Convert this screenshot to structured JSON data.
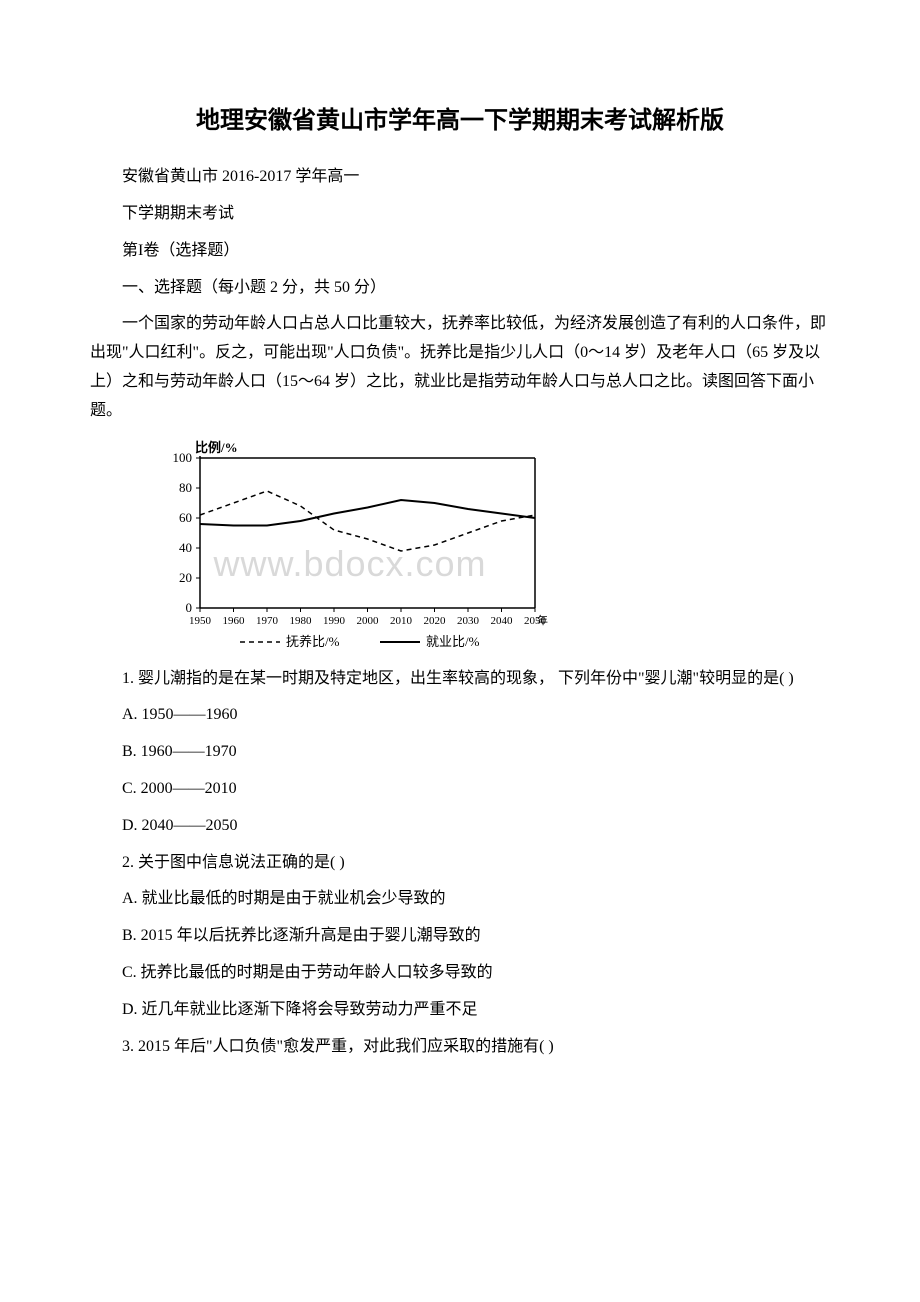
{
  "title": "地理安徽省黄山市学年高一下学期期末考试解析版",
  "intro": {
    "line1": "安徽省黄山市 2016-2017 学年高一",
    "line2": "下学期期末考试",
    "line3": "第I卷（选择题）",
    "line4": "一、选择题（每小题 2 分，共 50 分）"
  },
  "passage": "一个国家的劳动年龄人口占总人口比重较大，抚养率比较低，为经济发展创造了有利的人口条件，即出现\"人口红利\"。反之，可能出现\"人口负债\"。抚养比是指少儿人口（0～14 岁）及老年人口（65 岁及以上）之和与劳动年龄人口（15～64 岁）之比，就业比是指劳动年龄人口与总人口之比。读图回答下面小题。",
  "chart": {
    "type": "line",
    "y_label": "比例/%",
    "x_values": [
      1950,
      1960,
      1970,
      1980,
      1990,
      2000,
      2010,
      2020,
      2030,
      2040,
      2050
    ],
    "x_label_suffix": "年",
    "y_ticks": [
      0,
      20,
      40,
      60,
      80,
      100
    ],
    "ylim": [
      0,
      100
    ],
    "xlim": [
      1950,
      2050
    ],
    "series": {
      "fuyang": {
        "label": "抚养比/%",
        "values": [
          62,
          70,
          78,
          68,
          52,
          46,
          38,
          42,
          50,
          58,
          62
        ],
        "color": "#000000",
        "dash": "5,4",
        "width": 1.5
      },
      "jiuye": {
        "label": "就业比/%",
        "values": [
          56,
          55,
          55,
          58,
          63,
          67,
          72,
          70,
          66,
          63,
          60
        ],
        "color": "#000000",
        "dash": "none",
        "width": 2
      }
    },
    "background_color": "#ffffff",
    "axis_color": "#000000",
    "label_fontsize": 13
  },
  "q1": {
    "stem": "1. 婴儿潮指的是在某一时期及特定地区，出生率较高的现象， 下列年份中\"婴儿潮\"较明显的是( )",
    "a": "A. 1950——1960",
    "b": "B. 1960——1970",
    "c": "C. 2000——2010",
    "d": "D. 2040——2050"
  },
  "q2": {
    "stem": "2. 关于图中信息说法正确的是( )",
    "a": "A. 就业比最低的时期是由于就业机会少导致的",
    "b": "B. 2015 年以后抚养比逐渐升高是由于婴儿潮导致的",
    "c": "C. 抚养比最低的时期是由于劳动年龄人口较多导致的",
    "d": "D. 近几年就业比逐渐下降将会导致劳动力严重不足"
  },
  "q3": {
    "stem": "3. 2015 年后\"人口负债\"愈发严重，对此我们应采取的措施有( )"
  },
  "watermark": "www.bdocx.com"
}
